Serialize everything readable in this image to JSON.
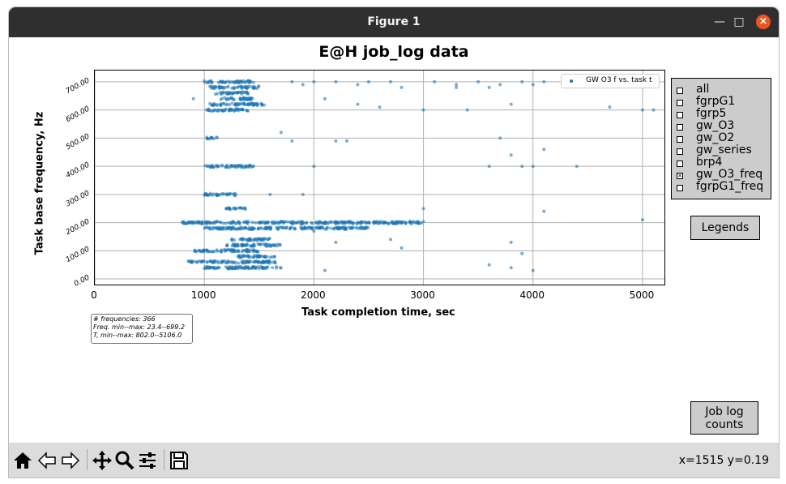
{
  "window": {
    "title": "Figure 1"
  },
  "figure": {
    "title": "E@H job_log data",
    "xlabel": "Task completion time, sec",
    "ylabel": "Task base frequency, Hz",
    "legend": "GW O3 f vs. task t",
    "stats": {
      "line1": "# frequencies: 366",
      "line2": "Freq. min--max: 23.4--699.2",
      "line3": "T, min--max: 802.0--5106.0"
    }
  },
  "chart_data": {
    "type": "scatter",
    "title": "E@H job_log data",
    "xlabel": "Task completion time, sec",
    "ylabel": "Task base frequency, Hz",
    "xlim": [
      0,
      5200
    ],
    "ylim": [
      -20,
      740
    ],
    "xticks": [
      "0",
      "1000",
      "2000",
      "3000",
      "4000",
      "5000"
    ],
    "yticks": [
      "0.00",
      "100.00",
      "200.00",
      "300.00",
      "400.00",
      "500.00",
      "600.00",
      "700.00"
    ],
    "xtick_values": [
      0,
      1000,
      2000,
      3000,
      4000,
      5000
    ],
    "ytick_values": [
      0,
      100,
      200,
      300,
      400,
      500,
      600,
      700
    ],
    "series": [
      {
        "name": "GW O3 f vs. task t",
        "color": "#1f77b4",
        "clusters": [
          {
            "y": 700,
            "x": [
              1000,
              1450
            ]
          },
          {
            "y": 680,
            "x": [
              1050,
              1500
            ]
          },
          {
            "y": 660,
            "x": [
              1100,
              1400
            ]
          },
          {
            "y": 640,
            "x": [
              1150,
              1450
            ]
          },
          {
            "y": 620,
            "x": [
              1050,
              1550
            ]
          },
          {
            "y": 600,
            "x": [
              1000,
              1400
            ]
          },
          {
            "y": 500,
            "x": [
              1020,
              1120
            ]
          },
          {
            "y": 400,
            "x": [
              1000,
              1450
            ]
          },
          {
            "y": 300,
            "x": [
              1000,
              1300
            ]
          },
          {
            "y": 250,
            "x": [
              1200,
              1380
            ]
          },
          {
            "y": 200,
            "x": [
              800,
              3000
            ]
          },
          {
            "y": 180,
            "x": [
              1000,
              2500
            ]
          },
          {
            "y": 140,
            "x": [
              1250,
              1600
            ]
          },
          {
            "y": 120,
            "x": [
              1200,
              1700
            ]
          },
          {
            "y": 100,
            "x": [
              900,
              1500
            ]
          },
          {
            "y": 80,
            "x": [
              1300,
              1650
            ]
          },
          {
            "y": 60,
            "x": [
              850,
              1650
            ]
          },
          {
            "y": 40,
            "x": [
              1000,
              1700
            ]
          }
        ],
        "points": [
          [
            1800,
            700
          ],
          [
            2000,
            700
          ],
          [
            2200,
            700
          ],
          [
            2500,
            700
          ],
          [
            2700,
            700
          ],
          [
            3100,
            700
          ],
          [
            3300,
            690
          ],
          [
            3500,
            700
          ],
          [
            3700,
            690
          ],
          [
            3900,
            700
          ],
          [
            4000,
            690
          ],
          [
            4100,
            700
          ],
          [
            1900,
            690
          ],
          [
            2400,
            690
          ],
          [
            2800,
            680
          ],
          [
            3300,
            680
          ],
          [
            3600,
            680
          ],
          [
            2100,
            640
          ],
          [
            2400,
            620
          ],
          [
            2600,
            610
          ],
          [
            3000,
            600
          ],
          [
            3400,
            600
          ],
          [
            3800,
            620
          ],
          [
            4700,
            610
          ],
          [
            5000,
            600
          ],
          [
            5100,
            600
          ],
          [
            900,
            640
          ],
          [
            1700,
            520
          ],
          [
            1800,
            490
          ],
          [
            2200,
            490
          ],
          [
            2300,
            490
          ],
          [
            3700,
            500
          ],
          [
            3800,
            440
          ],
          [
            4100,
            460
          ],
          [
            2000,
            400
          ],
          [
            3600,
            400
          ],
          [
            3900,
            400
          ],
          [
            4000,
            400
          ],
          [
            4400,
            400
          ],
          [
            1600,
            300
          ],
          [
            1900,
            300
          ],
          [
            3000,
            250
          ],
          [
            4100,
            240
          ],
          [
            5000,
            210
          ],
          [
            2000,
            170
          ],
          [
            2200,
            130
          ],
          [
            2700,
            140
          ],
          [
            2800,
            110
          ],
          [
            3800,
            130
          ],
          [
            3900,
            90
          ],
          [
            1500,
            60
          ],
          [
            2100,
            30
          ],
          [
            3600,
            50
          ],
          [
            3800,
            40
          ],
          [
            4000,
            30
          ]
        ]
      }
    ],
    "legend": "top-right"
  },
  "sidebar": {
    "checks": [
      {
        "label": "all",
        "checked": false
      },
      {
        "label": "fgrpG1",
        "checked": false
      },
      {
        "label": "fgrp5",
        "checked": false
      },
      {
        "label": "gw_O3",
        "checked": false
      },
      {
        "label": "gw_O2",
        "checked": false
      },
      {
        "label": "gw_series",
        "checked": false
      },
      {
        "label": "brp4",
        "checked": false
      },
      {
        "label": "gw_O3_freq",
        "checked": true
      },
      {
        "label": "fgrpG1_freq",
        "checked": false
      }
    ],
    "legends_button": "Legends",
    "joblog_line1": "Job log",
    "joblog_line2": "counts"
  },
  "toolbar": {
    "coords": "x=1515 y=0.19"
  },
  "icons": [
    "home-icon",
    "back-icon",
    "forward-icon",
    "pan-icon",
    "zoom-icon",
    "configure-icon",
    "save-icon"
  ],
  "colors": {
    "titlebar": "#2f2f2f",
    "close": "#e95420",
    "marker": "#1f77b4",
    "panel": "#cccccc"
  }
}
